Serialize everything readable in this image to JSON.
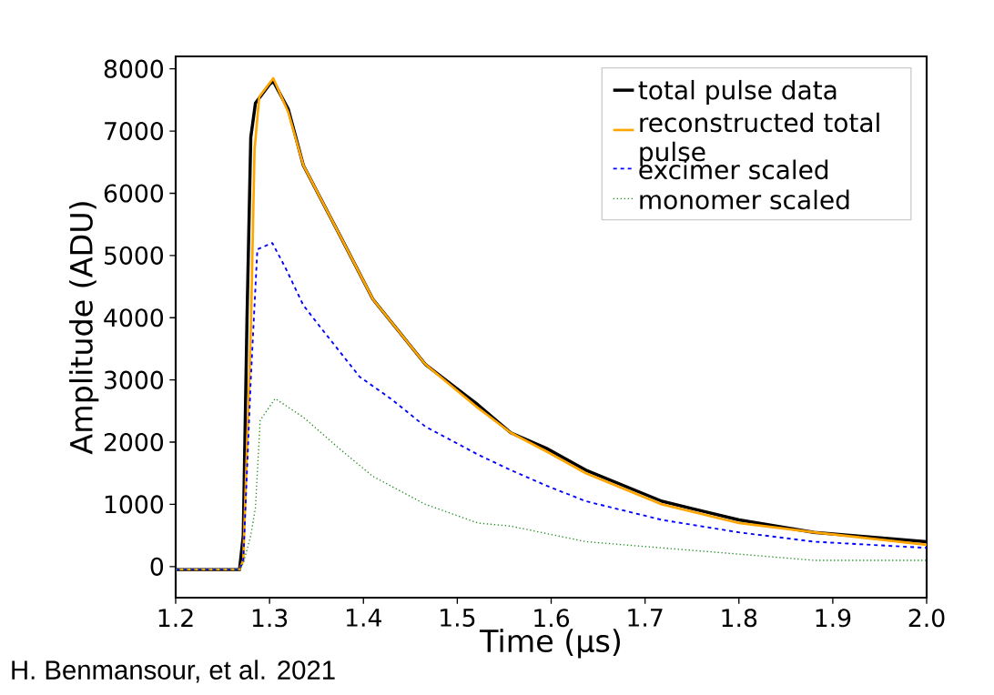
{
  "chart_data": {
    "type": "line",
    "xlabel": "Time (µs)",
    "ylabel": "Amplitude (ADU)",
    "xlim": [
      1.2,
      2.0
    ],
    "ylim": [
      -500,
      8200
    ],
    "xticks": [
      1.2,
      1.3,
      1.4,
      1.5,
      1.6,
      1.7,
      1.8,
      1.9,
      {
        "value": 2.0,
        "label": "2.0"
      }
    ],
    "yticks": [
      0,
      1000,
      2000,
      3000,
      4000,
      5000,
      6000,
      7000,
      8000
    ],
    "legend": "top right",
    "grid": false,
    "marker": "none",
    "annotations": [
      "H. Benmansour, et al. 2021"
    ],
    "series": [
      {
        "name": "total pulse data",
        "color": "#000000",
        "line_style": "solid",
        "x": [
          1.2,
          1.26,
          1.268,
          1.272,
          1.276,
          1.28,
          1.285,
          1.29,
          1.3,
          1.304,
          1.32,
          1.336,
          1.374,
          1.41,
          1.466,
          1.522,
          1.557,
          1.595,
          1.637,
          1.718,
          1.8,
          1.88,
          2.0
        ],
        "values": [
          -50,
          -50,
          -50,
          500,
          4000,
          6900,
          7450,
          7550,
          7750,
          7800,
          7350,
          6450,
          5350,
          4300,
          3250,
          2600,
          2150,
          1900,
          1550,
          1050,
          750,
          550,
          400
        ]
      },
      {
        "name": "reconstructed total pulse",
        "color": "#ffa500",
        "line_style": "solid",
        "x": [
          1.2,
          1.26,
          1.268,
          1.272,
          1.28,
          1.284,
          1.289,
          1.304,
          1.32,
          1.336,
          1.374,
          1.41,
          1.466,
          1.522,
          1.557,
          1.595,
          1.637,
          1.718,
          1.8,
          1.88,
          2.0
        ],
        "values": [
          -50,
          -50,
          -50,
          100,
          3750,
          6700,
          7550,
          7850,
          7300,
          6450,
          5350,
          4300,
          3250,
          2550,
          2150,
          1850,
          1500,
          1000,
          700,
          550,
          350
        ]
      },
      {
        "name": "excimer scaled",
        "color": "#0000ff",
        "line_style": "dashed",
        "x": [
          1.2,
          1.26,
          1.268,
          1.272,
          1.28,
          1.287,
          1.303,
          1.317,
          1.336,
          1.354,
          1.396,
          1.429,
          1.466,
          1.522,
          1.557,
          1.595,
          1.637,
          1.718,
          1.8,
          1.88,
          2.0
        ],
        "values": [
          -50,
          -50,
          -50,
          100,
          3000,
          5100,
          5200,
          4800,
          4200,
          3850,
          3050,
          2700,
          2250,
          1800,
          1550,
          1300,
          1050,
          750,
          550,
          400,
          300
        ]
      },
      {
        "name": "monomer scaled",
        "color": "#228b22",
        "line_style": "dotted",
        "x": [
          1.2,
          1.26,
          1.268,
          1.272,
          1.28,
          1.285,
          1.29,
          1.306,
          1.336,
          1.374,
          1.41,
          1.466,
          1.522,
          1.557,
          1.637,
          1.718,
          1.8,
          1.88,
          2.0
        ],
        "values": [
          -50,
          -50,
          -50,
          50,
          500,
          950,
          2350,
          2700,
          2400,
          1900,
          1450,
          1000,
          700,
          650,
          400,
          300,
          200,
          100,
          100
        ]
      }
    ]
  }
}
